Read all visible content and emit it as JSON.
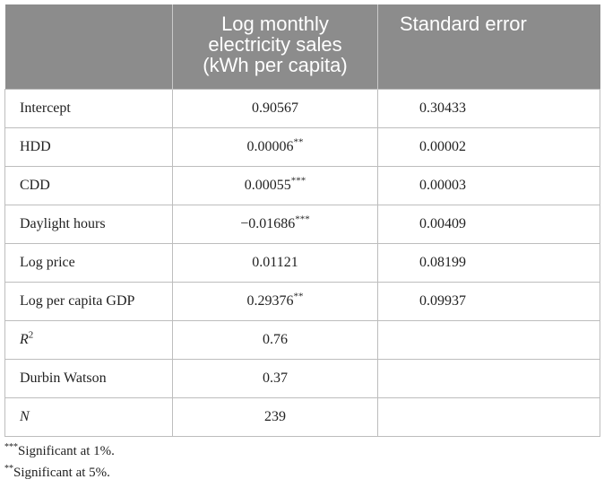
{
  "table": {
    "headers": {
      "col1": "",
      "col2": "Log monthly electricity sales (kWh per capita)",
      "col3": "Standard error"
    },
    "rows": [
      {
        "label": "Intercept",
        "coef": "0.90567",
        "stars": "",
        "se": "0.30433"
      },
      {
        "label": "HDD",
        "coef": "0.00006",
        "stars": "**",
        "se": "0.00002"
      },
      {
        "label": "CDD",
        "coef": "0.00055",
        "stars": "***",
        "se": "0.00003"
      },
      {
        "label": "Daylight hours",
        "coef": "−0.01686",
        "stars": "***",
        "se": "0.00409"
      },
      {
        "label": "Log price",
        "coef": "0.01121",
        "stars": "",
        "se": "0.08199"
      },
      {
        "label": "Log per capita GDP",
        "coef": "0.29376",
        "stars": "**",
        "se": "0.09937"
      },
      {
        "label": "R",
        "label_sup": "2",
        "coef": "0.76",
        "stars": "",
        "se": ""
      },
      {
        "label": "Durbin Watson",
        "coef": "0.37",
        "stars": "",
        "se": ""
      },
      {
        "label": "N",
        "coef": "239",
        "stars": "",
        "se": ""
      }
    ]
  },
  "notes": [
    {
      "marker": "***",
      "text": "Significant at 1%."
    },
    {
      "marker": "**",
      "text": "Significant at 5%."
    }
  ]
}
